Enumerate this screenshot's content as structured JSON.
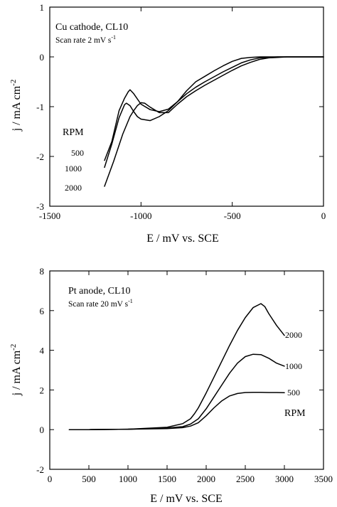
{
  "chart_data": [
    {
      "type": "line",
      "title": "Cu cathode, CL10",
      "subtitle": "Scan rate 2 mV s",
      "subtitle_sup": "-1",
      "xlabel": "E / mV vs. SCE",
      "ylabel_base": "j / mA cm",
      "ylabel_sup": "-2",
      "xlim": [
        -1500,
        0
      ],
      "ylim": [
        -3,
        1
      ],
      "xticks": [
        "-1500",
        "-1000",
        "-500",
        "0"
      ],
      "yticks": [
        "-3",
        "-2",
        "-1",
        "0",
        "1"
      ],
      "xtick_values": [
        -1500,
        -1000,
        -500,
        0
      ],
      "ytick_values": [
        -3,
        -2,
        -1,
        0,
        1
      ],
      "grid": false,
      "group_label": "RPM",
      "series": [
        {
          "name": "500",
          "x": [
            -1200,
            -1160,
            -1120,
            -1090,
            -1070,
            -1060,
            -1040,
            -1000,
            -950,
            -900,
            -850,
            -800,
            -750,
            -700,
            -650,
            -600,
            -550,
            -500,
            -450,
            -400,
            -350,
            -300,
            -250,
            -200,
            -150,
            -100,
            -50,
            0
          ],
          "y": [
            -2.08,
            -1.7,
            -1.08,
            -0.83,
            -0.7,
            -0.66,
            -0.74,
            -0.95,
            -1.06,
            -1.1,
            -1.05,
            -0.9,
            -0.68,
            -0.5,
            -0.39,
            -0.28,
            -0.18,
            -0.09,
            -0.03,
            -0.01,
            0,
            0,
            0,
            0,
            0,
            0,
            0,
            0
          ]
        },
        {
          "name": "1000",
          "x": [
            -1200,
            -1160,
            -1120,
            -1090,
            -1080,
            -1060,
            -1040,
            -1020,
            -1000,
            -950,
            -900,
            -850,
            -800,
            -750,
            -700,
            -650,
            -600,
            -550,
            -500,
            -450,
            -400,
            -350,
            -300,
            -250,
            -200,
            -150,
            -100,
            -50,
            0
          ],
          "y": [
            -2.22,
            -1.75,
            -1.22,
            -0.96,
            -0.93,
            -0.98,
            -1.1,
            -1.2,
            -1.25,
            -1.28,
            -1.2,
            -1.08,
            -0.9,
            -0.74,
            -0.61,
            -0.5,
            -0.4,
            -0.3,
            -0.21,
            -0.12,
            -0.06,
            -0.02,
            -0.01,
            0,
            0,
            0,
            0,
            0,
            0
          ]
        },
        {
          "name": "2000",
          "x": [
            -1200,
            -1150,
            -1100,
            -1060,
            -1040,
            -1020,
            -1000,
            -980,
            -950,
            -900,
            -850,
            -800,
            -750,
            -700,
            -650,
            -600,
            -550,
            -500,
            -450,
            -400,
            -350,
            -300,
            -250,
            -200,
            -150,
            -100,
            -50,
            0
          ],
          "y": [
            -2.6,
            -2.1,
            -1.55,
            -1.2,
            -1.08,
            -0.98,
            -0.92,
            -0.93,
            -1.01,
            -1.12,
            -1.12,
            -0.95,
            -0.8,
            -0.68,
            -0.57,
            -0.47,
            -0.37,
            -0.27,
            -0.18,
            -0.11,
            -0.05,
            -0.02,
            -0.01,
            0,
            0,
            0,
            0,
            0
          ]
        }
      ]
    },
    {
      "type": "line",
      "title": "Pt anode, CL10",
      "subtitle": "Scan rate 20 mV s",
      "subtitle_sup": "-1",
      "xlabel": "E / mV vs. SCE",
      "ylabel_base": "j / mA cm",
      "ylabel_sup": "-2",
      "xlim": [
        0,
        3500
      ],
      "ylim": [
        -2,
        8
      ],
      "xticks": [
        "0",
        "500",
        "1000",
        "1500",
        "2000",
        "2500",
        "3000",
        "3500"
      ],
      "yticks": [
        "-2",
        "0",
        "2",
        "4",
        "6",
        "8"
      ],
      "xtick_values": [
        0,
        500,
        1000,
        1500,
        2000,
        2500,
        3000,
        3500
      ],
      "ytick_values": [
        -2,
        0,
        2,
        4,
        6,
        8
      ],
      "grid": false,
      "group_label": "RPM",
      "series": [
        {
          "name": "500",
          "x": [
            250,
            500,
            1000,
            1500,
            1700,
            1800,
            1900,
            2000,
            2100,
            2200,
            2300,
            2400,
            2500,
            2600,
            2700,
            2800,
            2900,
            3000
          ],
          "y": [
            0,
            0,
            0.02,
            0.05,
            0.1,
            0.18,
            0.35,
            0.7,
            1.1,
            1.45,
            1.7,
            1.82,
            1.87,
            1.88,
            1.88,
            1.87,
            1.87,
            1.86
          ]
        },
        {
          "name": "1000",
          "x": [
            250,
            500,
            1000,
            1500,
            1700,
            1800,
            1900,
            2000,
            2100,
            2200,
            2300,
            2400,
            2500,
            2600,
            2700,
            2800,
            2900,
            3000
          ],
          "y": [
            0,
            0,
            0.02,
            0.08,
            0.15,
            0.28,
            0.55,
            1.05,
            1.65,
            2.25,
            2.85,
            3.35,
            3.68,
            3.8,
            3.78,
            3.6,
            3.35,
            3.2
          ]
        },
        {
          "name": "2000",
          "x": [
            250,
            500,
            1000,
            1500,
            1700,
            1800,
            1850,
            1900,
            2000,
            2100,
            2200,
            2300,
            2400,
            2500,
            2600,
            2700,
            2750,
            2800,
            2900,
            3000
          ],
          "y": [
            0,
            0,
            0.02,
            0.12,
            0.3,
            0.55,
            0.8,
            1.1,
            1.85,
            2.65,
            3.45,
            4.25,
            5.0,
            5.65,
            6.15,
            6.35,
            6.2,
            5.85,
            5.25,
            4.75
          ]
        }
      ]
    }
  ]
}
